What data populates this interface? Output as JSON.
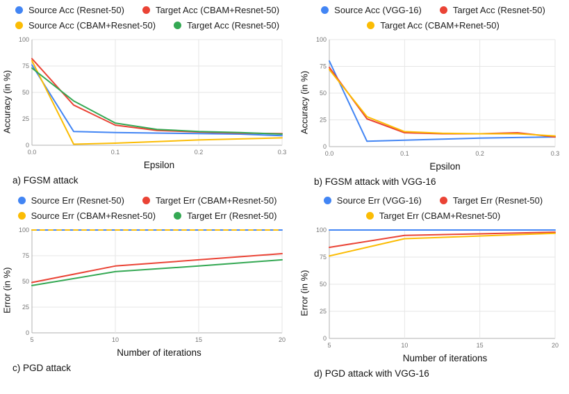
{
  "chart_data": [
    {
      "type": "line",
      "caption": "a) FGSM attack",
      "xlabel": "Epsilon",
      "ylabel": "Accuracy (in %)",
      "xlim": [
        0,
        0.3
      ],
      "ylim": [
        0,
        100
      ],
      "x": [
        0,
        0.05,
        0.1,
        0.15,
        0.2,
        0.25,
        0.3
      ],
      "x_ticks": [
        0,
        0.1,
        0.2,
        0.3
      ],
      "x_tick_labels": [
        "0.0",
        "0.1",
        "0.2",
        "0.3"
      ],
      "y_ticks": [
        0,
        25,
        50,
        75,
        100
      ],
      "grid": true,
      "legend_position": "top",
      "legend_rows": [
        [
          0,
          1
        ],
        [
          2,
          3
        ]
      ],
      "series": [
        {
          "name": "Source Acc (Resnet-50)",
          "color": "#4285F4",
          "values": [
            76,
            13,
            12,
            11.5,
            11,
            10.5,
            9
          ]
        },
        {
          "name": "Target Acc (CBAM+Resnet-50)",
          "color": "#EA4335",
          "values": [
            82,
            38,
            19,
            14,
            12.5,
            11.5,
            11
          ]
        },
        {
          "name": "Source Acc (CBAM+Resnet-50)",
          "color": "#FBBC04",
          "values": [
            80,
            1,
            2,
            3.5,
            5,
            6,
            7
          ]
        },
        {
          "name": "Target Acc (Resnet-50)",
          "color": "#34A853",
          "values": [
            73,
            42,
            21,
            15,
            13,
            12,
            10.5
          ]
        }
      ]
    },
    {
      "type": "line",
      "caption": "b) FGSM attack with VGG-16",
      "xlabel": "Epsilon",
      "ylabel": "Accuracy (in %)",
      "xlim": [
        0,
        0.3
      ],
      "ylim": [
        0,
        100
      ],
      "x": [
        0,
        0.05,
        0.1,
        0.15,
        0.2,
        0.25,
        0.3
      ],
      "x_ticks": [
        0,
        0.1,
        0.2,
        0.3
      ],
      "x_tick_labels": [
        "0.0",
        "0.1",
        "0.2",
        "0.3"
      ],
      "y_ticks": [
        0,
        25,
        50,
        75,
        100
      ],
      "grid": true,
      "legend_position": "top",
      "legend_rows": [
        [
          0,
          1
        ],
        [
          2
        ]
      ],
      "series": [
        {
          "name": "Source Acc (VGG-16)",
          "color": "#4285F4",
          "values": [
            80,
            5,
            6,
            7,
            8,
            8.5,
            9
          ]
        },
        {
          "name": "Target Acc (Resnet-50)",
          "color": "#EA4335",
          "values": [
            74,
            26,
            13,
            12,
            12,
            13,
            9
          ]
        },
        {
          "name": "Target Acc (CBAM+Renet-50)",
          "color": "#FBBC04",
          "values": [
            72,
            28,
            14,
            12.5,
            12,
            12,
            10
          ]
        }
      ]
    },
    {
      "type": "line",
      "caption": "c) PGD attack",
      "xlabel": "Number of iterations",
      "ylabel": "Error (in %)",
      "xlim": [
        5,
        20
      ],
      "ylim": [
        0,
        100
      ],
      "x": [
        5,
        10,
        15,
        20
      ],
      "x_ticks": [
        5,
        10,
        15,
        20
      ],
      "x_tick_labels": [
        "5",
        "10",
        "15",
        "20"
      ],
      "y_ticks": [
        0,
        25,
        50,
        75,
        100
      ],
      "grid": true,
      "legend_position": "top",
      "legend_rows": [
        [
          0,
          1
        ],
        [
          2,
          3
        ]
      ],
      "series": [
        {
          "name": "Source Err (Resnet-50)",
          "color": "#4285F4",
          "values": [
            100,
            100,
            100,
            100
          ]
        },
        {
          "name": "Target Err (CBAM+Resnet-50)",
          "color": "#EA4335",
          "values": [
            49,
            65,
            71,
            77
          ]
        },
        {
          "name": "Source Err (CBAM+Resnet-50)",
          "color": "#FBBC04",
          "values": [
            100,
            100,
            100,
            100
          ],
          "dash": "6 6"
        },
        {
          "name": "Target Err (Resnet-50)",
          "color": "#34A853",
          "values": [
            46,
            59.5,
            65,
            71
          ]
        }
      ]
    },
    {
      "type": "line",
      "caption": "d) PGD attack with VGG-16",
      "xlabel": "Number of iterations",
      "ylabel": "Error (in %)",
      "xlim": [
        5,
        20
      ],
      "ylim": [
        0,
        100
      ],
      "x": [
        5,
        10,
        15,
        20
      ],
      "x_ticks": [
        5,
        10,
        15,
        20
      ],
      "x_tick_labels": [
        "5",
        "10",
        "15",
        "20"
      ],
      "y_ticks": [
        0,
        25,
        50,
        75,
        100
      ],
      "grid": true,
      "legend_position": "top",
      "legend_rows": [
        [
          0,
          1
        ],
        [
          2
        ]
      ],
      "series": [
        {
          "name": "Source Err (VGG-16)",
          "color": "#4285F4",
          "values": [
            100,
            100,
            100,
            100
          ]
        },
        {
          "name": "Target Err (Resnet-50)",
          "color": "#EA4335",
          "values": [
            84,
            95,
            96.5,
            98
          ]
        },
        {
          "name": "Target Err (CBAM+Resnet-50)",
          "color": "#FBBC04",
          "values": [
            76,
            92,
            94.5,
            97
          ]
        }
      ]
    }
  ],
  "style": {
    "grid_color": "#e6e6e6",
    "axis_color": "#b0b0b0",
    "tick_label_color": "#757575"
  }
}
